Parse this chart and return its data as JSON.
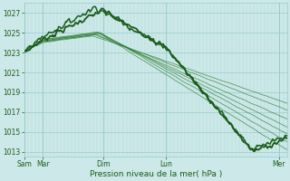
{
  "bg_color": "#cce8e8",
  "grid_color_major": "#99cccc",
  "grid_color_minor": "#b3d9d9",
  "line_color_dark": "#1a5c1a",
  "line_color_mid": "#2d7a2d",
  "xlabel": "Pression niveau de la mer( hPa )",
  "ylim": [
    1012.5,
    1028.0
  ],
  "yticks": [
    1013,
    1015,
    1017,
    1019,
    1021,
    1023,
    1025,
    1027
  ],
  "xtick_labels": [
    "Sam",
    "Mar",
    "Dim",
    "Lun",
    "Mer"
  ],
  "xtick_positions": [
    0.0,
    0.07,
    0.3,
    0.54,
    0.97
  ],
  "n_points": 300
}
